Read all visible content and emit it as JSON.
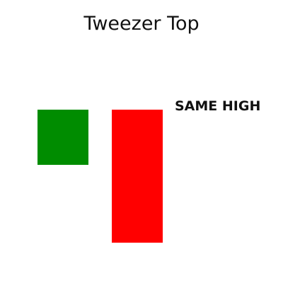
{
  "chart_data": {
    "type": "candlestick",
    "title": "Tweezer Top",
    "annotations": [
      {
        "text": "SAME HIGH"
      }
    ],
    "candles": [
      {
        "open": 0,
        "close": 78,
        "color": "#008c00"
      },
      {
        "open": 78,
        "close": -110,
        "color": "#ff0000"
      }
    ],
    "y_range": [
      -110,
      78
    ],
    "colors": {
      "bullish": "#008c00",
      "bearish": "#ff0000",
      "background": "#ffffff",
      "text": "#111111"
    }
  }
}
